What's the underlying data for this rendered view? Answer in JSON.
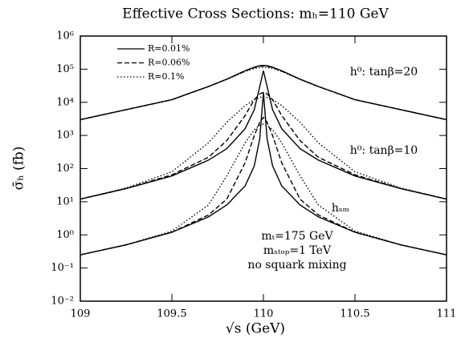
{
  "chart_data": {
    "type": "line",
    "title": "Effective Cross Sections: mₕ=110 GeV",
    "x_label": "√s (GeV)",
    "y_label": "σ̄ₕ (fb)",
    "log_y": true,
    "xlim": [
      109,
      111
    ],
    "xticks": [
      109,
      109.5,
      110,
      110.5,
      111
    ],
    "ylim": [
      0.01,
      1000000
    ],
    "yticks": [
      {
        "value": 0.01,
        "label": "10⁻²"
      },
      {
        "value": 0.1,
        "label": "10⁻¹"
      },
      {
        "value": 1,
        "label": "10⁰"
      },
      {
        "value": 10,
        "label": "10¹"
      },
      {
        "value": 100,
        "label": "10²"
      },
      {
        "value": 1000,
        "label": "10³"
      },
      {
        "value": 10000,
        "label": "10⁴"
      },
      {
        "value": 100000,
        "label": "10⁵"
      },
      {
        "value": 1000000,
        "label": "10⁶"
      }
    ],
    "legend_position": "upper left",
    "legend": [
      {
        "name": "R=0.01%",
        "dash": "solid"
      },
      {
        "name": "R=0.06%",
        "dash": "dashed"
      },
      {
        "name": "R=0.1%",
        "dash": "dotted"
      }
    ],
    "x": [
      109,
      109.25,
      109.5,
      109.7,
      109.8,
      109.9,
      109.95,
      109.98,
      110,
      110.02,
      110.05,
      110.1,
      110.2,
      110.3,
      110.5,
      110.75,
      111
    ],
    "curves": [
      {
        "label": "h⁰: tanβ=20",
        "series": [
          {
            "values": [
              3000,
              6000,
              12000,
              30000,
              50000,
              90000,
              115000,
              128000,
              130000,
              128000,
              115000,
              90000,
              50000,
              30000,
              12000,
              6000,
              3000
            ]
          },
          {
            "values": [
              3000,
              6000,
              12000,
              30000,
              50000,
              88000,
              112000,
              123000,
              125000,
              123000,
              112000,
              88000,
              50000,
              30000,
              12000,
              6000,
              3000
            ]
          },
          {
            "values": [
              3000,
              6000,
              12000,
              30000,
              49000,
              85000,
              105000,
              112000,
              115000,
              112000,
              105000,
              85000,
              49000,
              30000,
              12000,
              6000,
              3000
            ]
          }
        ]
      },
      {
        "label": "h⁰: tanβ=10",
        "series": [
          {
            "values": [
              12,
              25,
              60,
              180,
              400,
              1600,
              6000,
              30000,
              90000,
              30000,
              6000,
              1600,
              400,
              180,
              60,
              25,
              12
            ]
          },
          {
            "values": [
              12,
              25,
              65,
              220,
              700,
              4000,
              12000,
              18000,
              20000,
              18000,
              12000,
              4000,
              700,
              220,
              65,
              25,
              12
            ]
          },
          {
            "values": [
              12,
              26,
              80,
              600,
              2500,
              8000,
              12000,
              14000,
              15000,
              14000,
              12000,
              8000,
              2500,
              600,
              80,
              26,
              12
            ]
          }
        ]
      },
      {
        "label": "hₛₘ",
        "series": [
          {
            "values": [
              0.25,
              0.5,
              1.2,
              3.5,
              8,
              30,
              120,
              800,
              20000,
              800,
              120,
              30,
              8,
              3.5,
              1.2,
              0.5,
              0.25
            ]
          },
          {
            "values": [
              0.25,
              0.5,
              1.2,
              4,
              12,
              150,
              1000,
              2500,
              3500,
              2500,
              1000,
              150,
              12,
              4,
              1.2,
              0.5,
              0.25
            ]
          },
          {
            "values": [
              0.25,
              0.5,
              1.3,
              8,
              60,
              600,
              1500,
              2000,
              2200,
              2000,
              1500,
              600,
              60,
              8,
              1.3,
              0.5,
              0.25
            ]
          }
        ]
      }
    ],
    "annotations": [
      "mₜ=175 GeV",
      "mₛₜₒₚ=1 TeV",
      "no squark mixing"
    ]
  }
}
